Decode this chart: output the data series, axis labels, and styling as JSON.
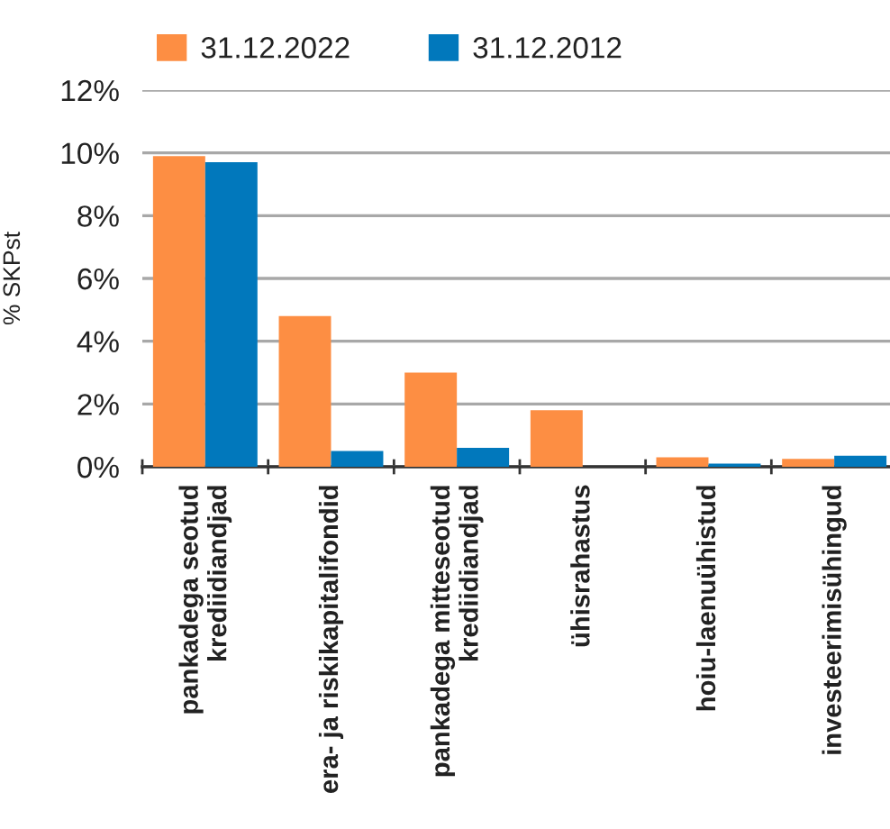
{
  "chart_data": {
    "type": "bar",
    "ylabel": "% SKPst",
    "categories": [
      "pankadega seotud\nkrediidiandjad",
      "era- ja riskikapitalifondid",
      "pankadega mitteseotud\nkrediidiandjad",
      "ühisrahastus",
      "hoiu-laenuühistud",
      "investeerimisühingud"
    ],
    "series": [
      {
        "name": "31.12.2022",
        "color": "#fd8e43",
        "values": [
          9.9,
          4.8,
          3.0,
          1.8,
          0.3,
          0.25
        ]
      },
      {
        "name": "31.12.2012",
        "color": "#0178bc",
        "values": [
          9.7,
          0.5,
          0.6,
          null,
          0.1,
          0.35
        ]
      }
    ],
    "ylim": [
      0,
      12
    ],
    "yticks": [
      {
        "value": 0,
        "label": "0%"
      },
      {
        "value": 2,
        "label": "2%"
      },
      {
        "value": 4,
        "label": "4%"
      },
      {
        "value": 6,
        "label": "6%"
      },
      {
        "value": 8,
        "label": "8%"
      },
      {
        "value": 10,
        "label": "10%"
      },
      {
        "value": 12,
        "label": "12%"
      }
    ],
    "grid": "y",
    "legend": "top left"
  }
}
